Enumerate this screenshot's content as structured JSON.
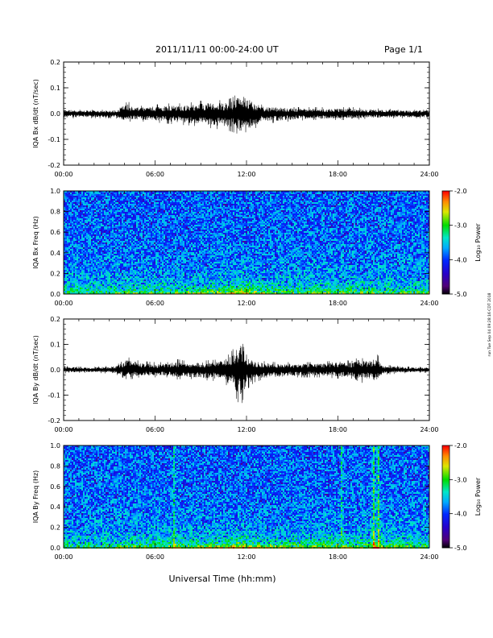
{
  "header": {
    "title": "2011/11/11  00:00-24:00 UT",
    "page": "Page 1/1"
  },
  "side_note": "run Tue Sep 04 09:28:16 CDT 2018",
  "chart_data": [
    {
      "type": "line",
      "id": "bx",
      "ylabel": "IQA Bx dB/dt (nT/sec)",
      "xlim": [
        0,
        24
      ],
      "ylim": [
        -0.2,
        0.2
      ],
      "yticks": [
        -0.2,
        -0.1,
        0.0,
        0.1,
        0.2
      ],
      "ytick_labels": [
        "-0.2",
        "-0.1",
        "0.0",
        "0.1",
        "0.2"
      ],
      "xticks": [
        0,
        6,
        12,
        18,
        24
      ],
      "xtick_labels": [
        "00:00",
        "06:00",
        "12:00",
        "18:00",
        "24:00"
      ],
      "envelope": {
        "hours": [
          0,
          1,
          2,
          3,
          3.6,
          4.0,
          4.5,
          5,
          6,
          7,
          8,
          9,
          10,
          10.5,
          11,
          11.5,
          12,
          12.5,
          13,
          14,
          15,
          16,
          17,
          18,
          19,
          20,
          21,
          22,
          23,
          24
        ],
        "upper": [
          0.02,
          0.015,
          0.015,
          0.015,
          0.02,
          0.065,
          0.03,
          0.03,
          0.035,
          0.04,
          0.04,
          0.05,
          0.055,
          0.05,
          0.06,
          0.08,
          0.085,
          0.05,
          0.035,
          0.03,
          0.025,
          0.025,
          0.025,
          0.025,
          0.025,
          0.02,
          0.02,
          0.015,
          0.015,
          0.015
        ],
        "lower": [
          -0.02,
          -0.018,
          -0.018,
          -0.018,
          -0.02,
          -0.035,
          -0.03,
          -0.03,
          -0.035,
          -0.04,
          -0.045,
          -0.05,
          -0.06,
          -0.06,
          -0.07,
          -0.08,
          -0.1,
          -0.06,
          -0.04,
          -0.035,
          -0.03,
          -0.025,
          -0.025,
          -0.025,
          -0.025,
          -0.02,
          -0.02,
          -0.018,
          -0.018,
          -0.018
        ]
      }
    },
    {
      "type": "heatmap",
      "id": "bxs",
      "ylabel": "IQA Bx Freq (Hz)",
      "xlim": [
        0,
        24
      ],
      "ylim": [
        0.0,
        1.0
      ],
      "yticks": [
        0.0,
        0.2,
        0.4,
        0.6,
        0.8,
        1.0
      ],
      "ytick_labels": [
        "0.0",
        "0.2",
        "0.4",
        "0.6",
        "0.8",
        "1.0"
      ],
      "xticks": [
        0,
        6,
        12,
        18,
        24
      ],
      "xtick_labels": [
        "00:00",
        "06:00",
        "12:00",
        "18:00",
        "24:00"
      ],
      "colorbar": {
        "label": "Log₁₀ Power",
        "range": [
          -5.0,
          -2.0
        ],
        "ticks": [
          -5.0,
          -4.0,
          -3.0,
          -2.0
        ],
        "tick_labels": [
          "-5.0",
          "-4.0",
          "-3.0",
          "-2.0"
        ]
      },
      "activity": {
        "hours": [
          0,
          2,
          4,
          6,
          8,
          10,
          11,
          12,
          13,
          14,
          16,
          18,
          20,
          22,
          24
        ],
        "level": [
          0.4,
          0.35,
          0.45,
          0.45,
          0.5,
          0.55,
          0.65,
          0.7,
          0.6,
          0.5,
          0.45,
          0.5,
          0.45,
          0.4,
          0.4
        ]
      },
      "vertical_features": []
    },
    {
      "type": "line",
      "id": "by",
      "ylabel": "IQA By dB/dt (nT/sec)",
      "xlim": [
        0,
        24
      ],
      "ylim": [
        -0.2,
        0.2
      ],
      "yticks": [
        -0.2,
        -0.1,
        0.0,
        0.1,
        0.2
      ],
      "ytick_labels": [
        "-0.2",
        "-0.1",
        "0.0",
        "0.1",
        "0.2"
      ],
      "xticks": [
        0,
        6,
        12,
        18,
        24
      ],
      "xtick_labels": [
        "00:00",
        "06:00",
        "12:00",
        "18:00",
        "24:00"
      ],
      "envelope": {
        "hours": [
          0,
          1,
          2,
          3,
          3.5,
          4.2,
          5,
          6,
          7,
          7.2,
          8,
          9,
          10,
          10.5,
          11,
          11.3,
          11.6,
          12,
          12.5,
          13,
          14,
          15,
          16,
          17,
          18,
          19,
          19.3,
          20,
          20.6,
          21,
          22,
          23,
          24
        ],
        "upper": [
          0.015,
          0.012,
          0.012,
          0.015,
          0.02,
          0.05,
          0.035,
          0.03,
          0.03,
          0.045,
          0.035,
          0.035,
          0.04,
          0.045,
          0.07,
          0.1,
          0.13,
          0.06,
          0.04,
          0.035,
          0.03,
          0.03,
          0.03,
          0.03,
          0.04,
          0.035,
          0.05,
          0.04,
          0.06,
          0.02,
          0.015,
          0.012,
          0.012
        ],
        "lower": [
          -0.015,
          -0.012,
          -0.012,
          -0.015,
          -0.02,
          -0.04,
          -0.03,
          -0.03,
          -0.03,
          -0.04,
          -0.035,
          -0.04,
          -0.045,
          -0.05,
          -0.08,
          -0.11,
          -0.15,
          -0.08,
          -0.05,
          -0.04,
          -0.035,
          -0.03,
          -0.03,
          -0.03,
          -0.035,
          -0.035,
          -0.06,
          -0.04,
          -0.06,
          -0.02,
          -0.015,
          -0.012,
          -0.012
        ]
      }
    },
    {
      "type": "heatmap",
      "id": "bys",
      "ylabel": "IQA By Freq (Hz)",
      "xlim": [
        0,
        24
      ],
      "ylim": [
        0.0,
        1.0
      ],
      "yticks": [
        0.0,
        0.2,
        0.4,
        0.6,
        0.8,
        1.0
      ],
      "ytick_labels": [
        "0.0",
        "0.2",
        "0.4",
        "0.6",
        "0.8",
        "1.0"
      ],
      "xticks": [
        0,
        6,
        12,
        18,
        24
      ],
      "xtick_labels": [
        "00:00",
        "06:00",
        "12:00",
        "18:00",
        "24:00"
      ],
      "xlabel": "Universal Time (hh:mm)",
      "colorbar": {
        "label": "Log₁₀ Power",
        "range": [
          -5.0,
          -2.0
        ],
        "ticks": [
          -5.0,
          -4.0,
          -3.0,
          -2.0
        ],
        "tick_labels": [
          "-5.0",
          "-4.0",
          "-3.0",
          "-2.0"
        ]
      },
      "activity": {
        "hours": [
          0,
          2,
          4,
          6,
          7,
          8,
          10,
          11,
          11.5,
          12,
          13,
          14,
          16,
          18,
          19,
          20,
          20.5,
          21,
          22,
          24
        ],
        "level": [
          0.3,
          0.3,
          0.4,
          0.45,
          0.5,
          0.5,
          0.55,
          0.65,
          0.8,
          0.7,
          0.55,
          0.5,
          0.5,
          0.55,
          0.5,
          0.55,
          0.75,
          0.5,
          0.45,
          0.4
        ]
      },
      "vertical_features": [
        {
          "hour": 7.2,
          "strength": 0.5
        },
        {
          "hour": 18.2,
          "strength": 0.45
        },
        {
          "hour": 20.3,
          "strength": 0.7
        },
        {
          "hour": 20.6,
          "strength": 0.8
        }
      ]
    }
  ]
}
